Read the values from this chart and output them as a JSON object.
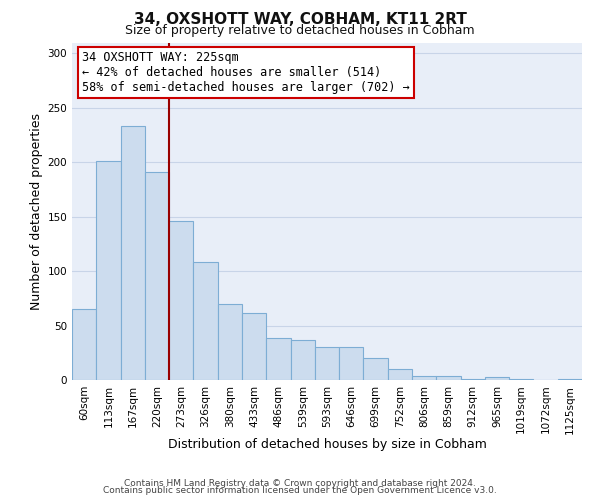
{
  "title": "34, OXSHOTT WAY, COBHAM, KT11 2RT",
  "subtitle": "Size of property relative to detached houses in Cobham",
  "xlabel": "Distribution of detached houses by size in Cobham",
  "ylabel": "Number of detached properties",
  "bar_labels": [
    "60sqm",
    "113sqm",
    "167sqm",
    "220sqm",
    "273sqm",
    "326sqm",
    "380sqm",
    "433sqm",
    "486sqm",
    "539sqm",
    "593sqm",
    "646sqm",
    "699sqm",
    "752sqm",
    "806sqm",
    "859sqm",
    "912sqm",
    "965sqm",
    "1019sqm",
    "1072sqm",
    "1125sqm"
  ],
  "bar_values": [
    65,
    201,
    233,
    191,
    146,
    108,
    70,
    62,
    39,
    37,
    30,
    30,
    20,
    10,
    4,
    4,
    1,
    3,
    1,
    0,
    1
  ],
  "bar_color": "#ccdcee",
  "bar_edge_color": "#7dadd4",
  "highlight_line_color": "#990000",
  "annotation_line1": "34 OXSHOTT WAY: 225sqm",
  "annotation_line2": "← 42% of detached houses are smaller (514)",
  "annotation_line3": "58% of semi-detached houses are larger (702) →",
  "annotation_box_facecolor": "#ffffff",
  "annotation_box_edgecolor": "#cc0000",
  "ylim": [
    0,
    310
  ],
  "yticks": [
    0,
    50,
    100,
    150,
    200,
    250,
    300
  ],
  "bg_color": "#ffffff",
  "plot_bg_color": "#e8eef8",
  "grid_color": "#c8d4e8",
  "title_fontsize": 11,
  "subtitle_fontsize": 9,
  "axis_label_fontsize": 9,
  "tick_fontsize": 7.5,
  "annotation_fontsize": 8.5,
  "footer_fontsize": 6.5,
  "footer_line1": "Contains HM Land Registry data © Crown copyright and database right 2024.",
  "footer_line2": "Contains public sector information licensed under the Open Government Licence v3.0."
}
